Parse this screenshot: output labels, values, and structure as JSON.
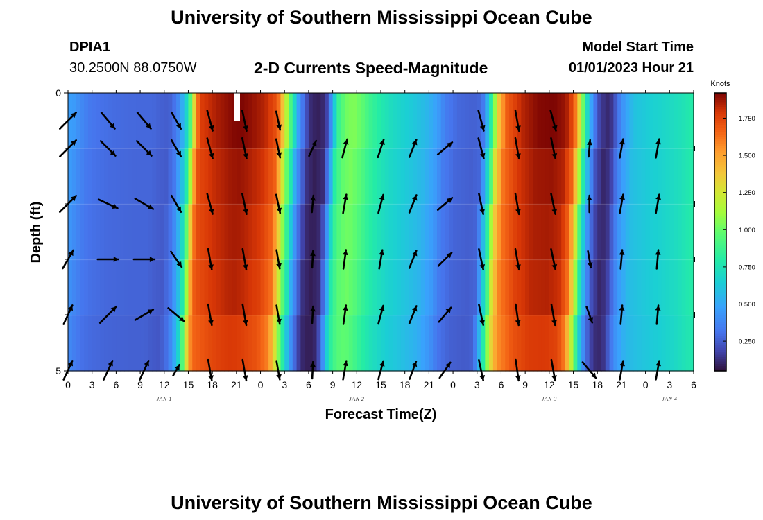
{
  "header": {
    "title": "University of Southern Mississippi Ocean Cube",
    "station_id": "DPIA1",
    "station_coords": "30.2500N  88.0750W",
    "subtitle": "2-D Currents Speed-Magnitude",
    "model_start_label": "Model Start Time",
    "model_start_value": "01/01/2023 Hour 21"
  },
  "footer": {
    "title": "University of Southern Mississippi Ocean Cube"
  },
  "chart_data": {
    "type": "heatmap",
    "title": "2-D Currents Speed-Magnitude",
    "xlabel": "Forecast Time(Z)",
    "ylabel": "Depth (ft)",
    "x_tick_labels": [
      "0",
      "3",
      "6",
      "9",
      "12",
      "15",
      "18",
      "21",
      "0",
      "3",
      "6",
      "9",
      "12",
      "15",
      "18",
      "21",
      "0",
      "3",
      "6",
      "9",
      "12",
      "15",
      "18",
      "21",
      "0",
      "3",
      "6"
    ],
    "x_range_hours": [
      0,
      78
    ],
    "day_labels": [
      {
        "label": "JAN 1",
        "hour": 12
      },
      {
        "label": "JAN 2",
        "hour": 36
      },
      {
        "label": "JAN 3",
        "hour": 60
      },
      {
        "label": "JAN 4",
        "hour": 75
      }
    ],
    "y_tick_labels": [
      "0",
      "5"
    ],
    "ylim": [
      0,
      5
    ],
    "depth_rows": 5,
    "colorbar": {
      "unit": "Knots",
      "min": 0.05,
      "max": 1.92,
      "ticks": [
        "1.750",
        "1.500",
        "1.250",
        "1.000",
        "0.750",
        "0.500",
        "0.250"
      ],
      "tick_values": [
        1.75,
        1.5,
        1.25,
        1.0,
        0.75,
        0.5,
        0.25
      ]
    },
    "speed_profile_knots": [
      {
        "hour": 0,
        "speed": 0.45
      },
      {
        "hour": 1,
        "speed": 0.38
      },
      {
        "hour": 2,
        "speed": 0.32
      },
      {
        "hour": 3,
        "speed": 0.3
      },
      {
        "hour": 5,
        "speed": 0.28
      },
      {
        "hour": 8,
        "speed": 0.27
      },
      {
        "hour": 10,
        "speed": 0.27
      },
      {
        "hour": 11,
        "speed": 0.25
      },
      {
        "hour": 12,
        "speed": 0.24
      },
      {
        "hour": 13,
        "speed": 0.33
      },
      {
        "hour": 14,
        "speed": 0.6
      },
      {
        "hour": 14.5,
        "speed": 0.8
      },
      {
        "hour": 15,
        "speed": 1.15
      },
      {
        "hour": 15.5,
        "speed": 1.55
      },
      {
        "hour": 16,
        "speed": 1.72
      },
      {
        "hour": 18,
        "speed": 1.8
      },
      {
        "hour": 20,
        "speed": 1.85
      },
      {
        "hour": 21,
        "speed": 1.86
      },
      {
        "hour": 22,
        "speed": 1.84
      },
      {
        "hour": 24,
        "speed": 1.78
      },
      {
        "hour": 25.5,
        "speed": 1.65
      },
      {
        "hour": 26.3,
        "speed": 1.3
      },
      {
        "hour": 27,
        "speed": 0.95
      },
      {
        "hour": 27.6,
        "speed": 0.7
      },
      {
        "hour": 28,
        "speed": 0.5
      },
      {
        "hour": 28.7,
        "speed": 0.3
      },
      {
        "hour": 29.5,
        "speed": 0.12
      },
      {
        "hour": 30.5,
        "speed": 0.08
      },
      {
        "hour": 31.5,
        "speed": 0.12
      },
      {
        "hour": 32,
        "speed": 0.3
      },
      {
        "hour": 32.5,
        "speed": 0.55
      },
      {
        "hour": 33,
        "speed": 0.82
      },
      {
        "hour": 34,
        "speed": 0.98
      },
      {
        "hour": 35,
        "speed": 1.02
      },
      {
        "hour": 36,
        "speed": 0.95
      },
      {
        "hour": 37,
        "speed": 0.85
      },
      {
        "hour": 38.5,
        "speed": 0.75
      },
      {
        "hour": 40,
        "speed": 0.68
      },
      {
        "hour": 42,
        "speed": 0.62
      },
      {
        "hour": 44,
        "speed": 0.55
      },
      {
        "hour": 45.5,
        "speed": 0.45
      },
      {
        "hour": 46.5,
        "speed": 0.33
      },
      {
        "hour": 48,
        "speed": 0.27
      },
      {
        "hour": 50,
        "speed": 0.25
      },
      {
        "hour": 51,
        "speed": 0.27
      },
      {
        "hour": 51.5,
        "speed": 0.45
      },
      {
        "hour": 52,
        "speed": 0.7
      },
      {
        "hour": 52.5,
        "speed": 0.95
      },
      {
        "hour": 53,
        "speed": 1.3
      },
      {
        "hour": 54,
        "speed": 1.62
      },
      {
        "hour": 56,
        "speed": 1.78
      },
      {
        "hour": 58,
        "speed": 1.85
      },
      {
        "hour": 60,
        "speed": 1.86
      },
      {
        "hour": 61.5,
        "speed": 1.82
      },
      {
        "hour": 62.5,
        "speed": 1.65
      },
      {
        "hour": 63.3,
        "speed": 1.2
      },
      {
        "hour": 64,
        "speed": 0.75
      },
      {
        "hour": 64.8,
        "speed": 0.4
      },
      {
        "hour": 65.5,
        "speed": 0.2
      },
      {
        "hour": 66.5,
        "speed": 0.1
      },
      {
        "hour": 67.3,
        "speed": 0.15
      },
      {
        "hour": 68,
        "speed": 0.3
      },
      {
        "hour": 68.8,
        "speed": 0.45
      },
      {
        "hour": 70,
        "speed": 0.58
      },
      {
        "hour": 72,
        "speed": 0.63
      },
      {
        "hour": 74,
        "speed": 0.67
      },
      {
        "hour": 76,
        "speed": 0.72
      },
      {
        "hour": 78,
        "speed": 0.8
      }
    ],
    "vector_arrows": [
      {
        "hour": 0,
        "rows": [
          {
            "d": 45,
            "s": 1.1
          },
          {
            "d": 45,
            "s": 1.1
          },
          {
            "d": 45,
            "s": 1.1
          },
          {
            "d": 30,
            "s": 1.0
          },
          {
            "d": 25,
            "s": 1.0
          },
          {
            "d": 25,
            "s": 1.0
          }
        ]
      },
      {
        "hour": 5,
        "rows": [
          {
            "d": 140,
            "s": 1.0
          },
          {
            "d": 135,
            "s": 1.0
          },
          {
            "d": 115,
            "s": 1.0
          },
          {
            "d": 90,
            "s": 1.0
          },
          {
            "d": 45,
            "s": 1.1
          },
          {
            "d": 25,
            "s": 1.0
          }
        ]
      },
      {
        "hour": 9.5,
        "rows": [
          {
            "d": 140,
            "s": 1.0
          },
          {
            "d": 135,
            "s": 1.0
          },
          {
            "d": 120,
            "s": 1.0
          },
          {
            "d": 90,
            "s": 1.0
          },
          {
            "d": 60,
            "s": 1.0
          },
          {
            "d": 25,
            "s": 1.0
          }
        ]
      },
      {
        "hour": 13.5,
        "rows": [
          {
            "d": 150,
            "s": 0.9
          },
          {
            "d": 150,
            "s": 0.9
          },
          {
            "d": 150,
            "s": 0.9
          },
          {
            "d": 145,
            "s": 0.9
          },
          {
            "d": 130,
            "s": 1.0
          },
          {
            "d": 30,
            "s": 0.6
          }
        ]
      },
      {
        "hour": 17.7,
        "rows": [
          {
            "d": 165,
            "s": 1.0
          },
          {
            "d": 165,
            "s": 1.0
          },
          {
            "d": 165,
            "s": 1.0
          },
          {
            "d": 170,
            "s": 1.0
          },
          {
            "d": 170,
            "s": 1.0
          },
          {
            "d": 170,
            "s": 1.0
          }
        ]
      },
      {
        "hour": 22,
        "rows": [
          {
            "d": 168,
            "s": 1.0
          },
          {
            "d": 168,
            "s": 1.0
          },
          {
            "d": 168,
            "s": 1.0
          },
          {
            "d": 170,
            "s": 1.0
          },
          {
            "d": 170,
            "s": 1.0
          },
          {
            "d": 170,
            "s": 1.0
          }
        ]
      },
      {
        "hour": 26.2,
        "rows": [
          {
            "d": 168,
            "s": 0.9
          },
          {
            "d": 168,
            "s": 0.9
          },
          {
            "d": 168,
            "s": 0.9
          },
          {
            "d": 170,
            "s": 0.9
          },
          {
            "d": 170,
            "s": 0.9
          },
          {
            "d": 170,
            "s": 0.9
          }
        ]
      },
      {
        "hour": 30.5,
        "rows": [
          {
            "d": 0,
            "s": 0.05
          },
          {
            "d": 25,
            "s": 0.8
          },
          {
            "d": 5,
            "s": 0.8
          },
          {
            "d": 3,
            "s": 0.8
          },
          {
            "d": 3,
            "s": 0.8
          },
          {
            "d": 3,
            "s": 0.8
          }
        ]
      },
      {
        "hour": 34.5,
        "rows": [
          {
            "d": 0,
            "s": 0.05
          },
          {
            "d": 15,
            "s": 0.9
          },
          {
            "d": 10,
            "s": 0.9
          },
          {
            "d": 8,
            "s": 0.9
          },
          {
            "d": 8,
            "s": 0.9
          },
          {
            "d": 10,
            "s": 0.9
          }
        ]
      },
      {
        "hour": 39,
        "rows": [
          {
            "d": 0,
            "s": 0.05
          },
          {
            "d": 18,
            "s": 0.9
          },
          {
            "d": 15,
            "s": 0.9
          },
          {
            "d": 10,
            "s": 0.9
          },
          {
            "d": 15,
            "s": 0.9
          },
          {
            "d": 15,
            "s": 0.9
          }
        ]
      },
      {
        "hour": 43,
        "rows": [
          {
            "d": 0,
            "s": 0.05
          },
          {
            "d": 22,
            "s": 0.9
          },
          {
            "d": 22,
            "s": 0.9
          },
          {
            "d": 22,
            "s": 0.9
          },
          {
            "d": 22,
            "s": 0.9
          },
          {
            "d": 20,
            "s": 0.9
          }
        ]
      },
      {
        "hour": 47,
        "rows": [
          {
            "d": 0,
            "s": 0.05
          },
          {
            "d": 50,
            "s": 0.9
          },
          {
            "d": 50,
            "s": 0.9
          },
          {
            "d": 45,
            "s": 0.9
          },
          {
            "d": 40,
            "s": 0.9
          },
          {
            "d": 35,
            "s": 0.9
          }
        ]
      },
      {
        "hour": 51.5,
        "rows": [
          {
            "d": 165,
            "s": 1.0
          },
          {
            "d": 165,
            "s": 1.0
          },
          {
            "d": 168,
            "s": 1.0
          },
          {
            "d": 168,
            "s": 1.0
          },
          {
            "d": 168,
            "s": 1.0
          },
          {
            "d": 168,
            "s": 1.0
          }
        ]
      },
      {
        "hour": 56,
        "rows": [
          {
            "d": 170,
            "s": 1.0
          },
          {
            "d": 170,
            "s": 1.0
          },
          {
            "d": 170,
            "s": 1.0
          },
          {
            "d": 170,
            "s": 1.0
          },
          {
            "d": 172,
            "s": 1.0
          },
          {
            "d": 172,
            "s": 1.0
          }
        ]
      },
      {
        "hour": 60.5,
        "rows": [
          {
            "d": 165,
            "s": 1.0
          },
          {
            "d": 168,
            "s": 1.0
          },
          {
            "d": 168,
            "s": 1.0
          },
          {
            "d": 168,
            "s": 1.0
          },
          {
            "d": 170,
            "s": 1.0
          },
          {
            "d": 170,
            "s": 1.0
          }
        ]
      },
      {
        "hour": 65,
        "rows": [
          {
            "d": 0,
            "s": 0.05
          },
          {
            "d": 5,
            "s": 0.8
          },
          {
            "d": 0,
            "s": 0.8
          },
          {
            "d": 170,
            "s": 0.8
          },
          {
            "d": 160,
            "s": 0.8
          },
          {
            "d": 140,
            "s": 1.0
          }
        ]
      },
      {
        "hour": 69,
        "rows": [
          {
            "d": 0,
            "s": 0.05
          },
          {
            "d": 10,
            "s": 0.9
          },
          {
            "d": 10,
            "s": 0.9
          },
          {
            "d": 5,
            "s": 0.9
          },
          {
            "d": 5,
            "s": 0.9
          },
          {
            "d": 10,
            "s": 0.9
          }
        ]
      },
      {
        "hour": 73.5,
        "rows": [
          {
            "d": 0,
            "s": 0.05
          },
          {
            "d": 10,
            "s": 0.9
          },
          {
            "d": 10,
            "s": 0.9
          },
          {
            "d": 5,
            "s": 0.9
          },
          {
            "d": 5,
            "s": 0.9
          },
          {
            "d": 10,
            "s": 0.9
          }
        ]
      }
    ]
  }
}
